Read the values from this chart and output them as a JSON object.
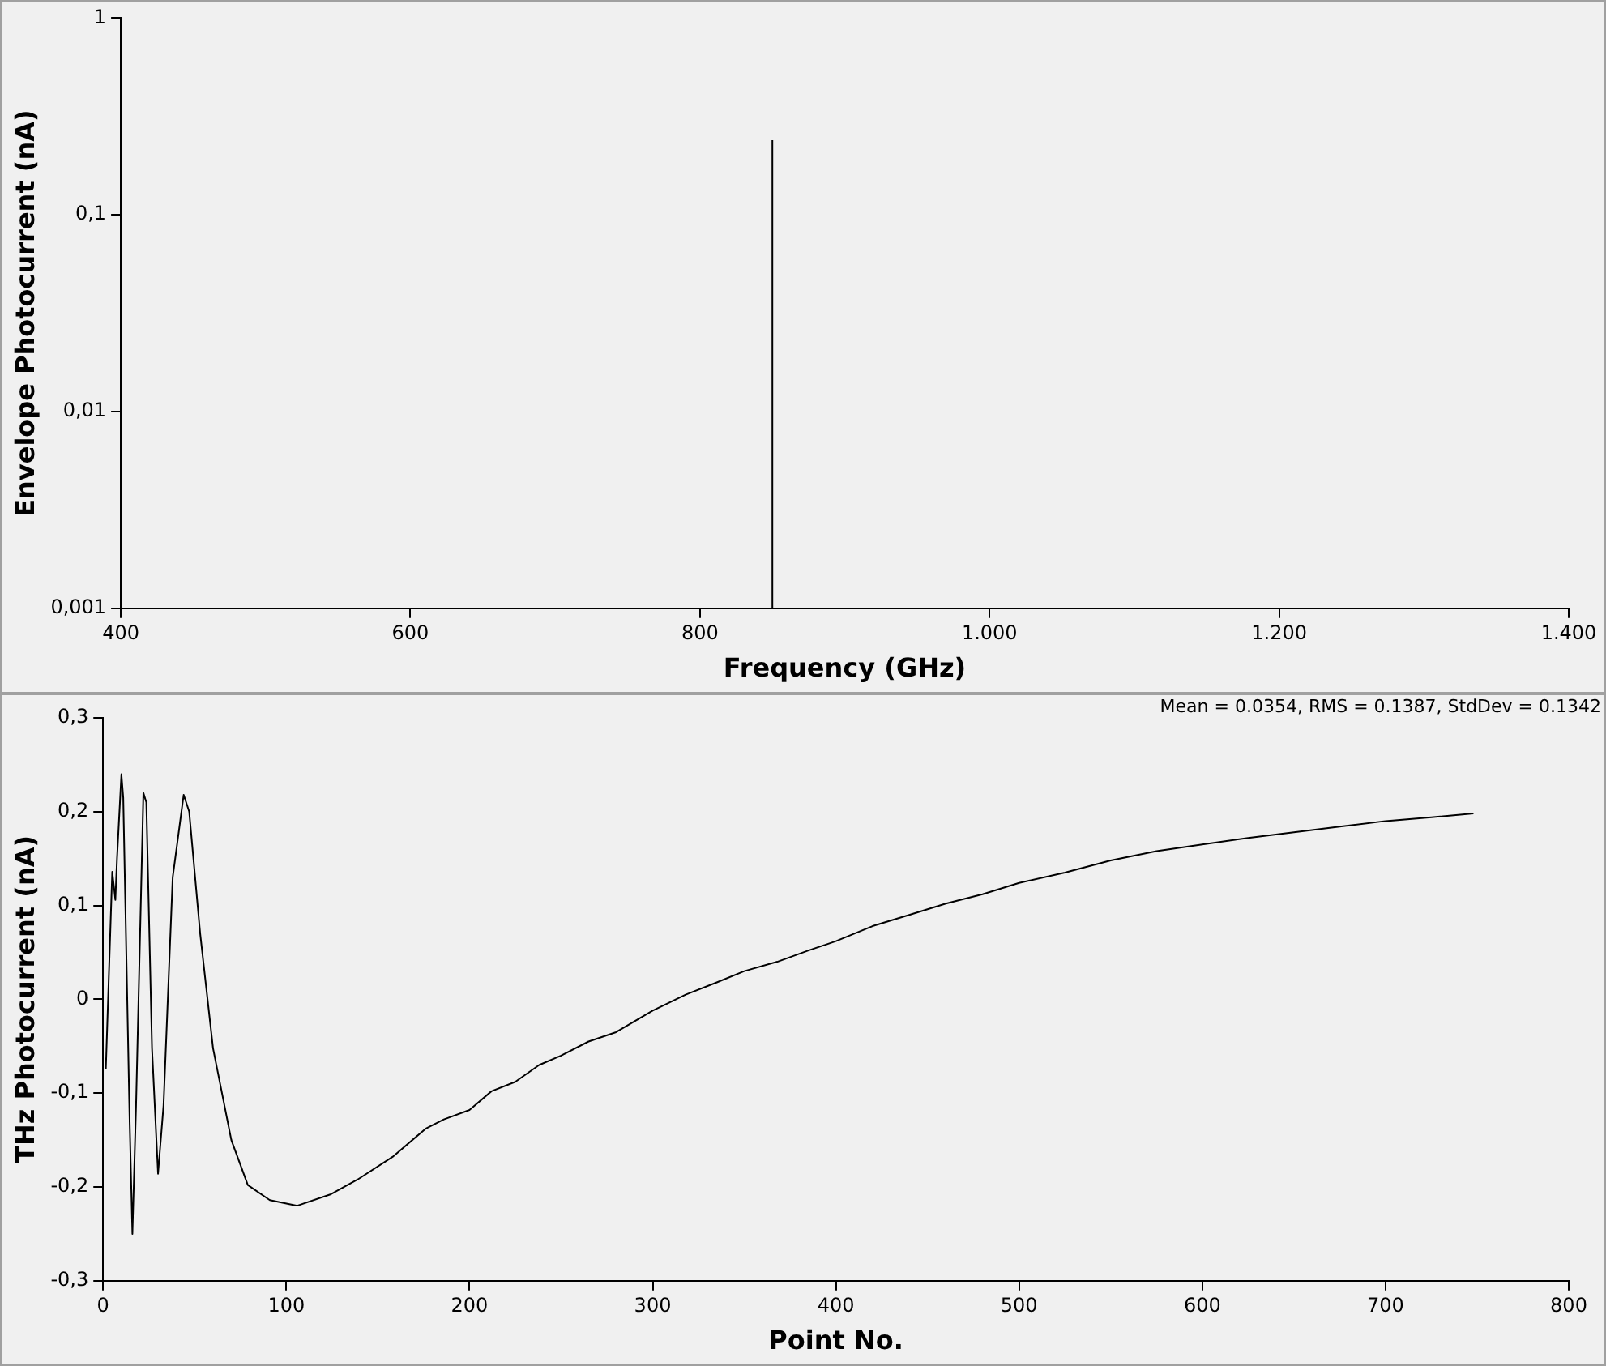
{
  "chart_data": [
    {
      "type": "line",
      "xlabel": "Frequency (GHz)",
      "ylabel": "Envelope Photocurrent (nA)",
      "log": "y",
      "grid": false,
      "legend": false,
      "marker": "none",
      "line_style": "solid",
      "xlim": [
        400,
        1400
      ],
      "xticks": [
        400,
        600,
        800,
        {
          "value": 1000,
          "label": "1.000"
        },
        {
          "value": 1200,
          "label": "1.200"
        },
        {
          "value": 1400,
          "label": "1.400"
        }
      ],
      "ylim": [
        0.001,
        1
      ],
      "yticks": [
        {
          "value": 0.001,
          "label": "0,001"
        },
        {
          "value": 0.01,
          "label": "0,01"
        },
        {
          "value": 0.1,
          "label": "0,1"
        },
        1
      ],
      "series": [
        {
          "color": "#000000",
          "x": [
            850,
            850
          ],
          "values": [
            0.001,
            0.24
          ]
        }
      ]
    },
    {
      "type": "line",
      "xlabel": "Point No.",
      "ylabel": "THz Photocurrent (nA)",
      "grid": false,
      "legend": false,
      "marker": "none",
      "line_style": "solid",
      "annotations": [
        "Mean = 0.0354, RMS = 0.1387, StdDev = 0.1342"
      ],
      "xlim": [
        0,
        800
      ],
      "xticks": [
        0,
        100,
        200,
        300,
        400,
        500,
        600,
        700,
        800
      ],
      "ylim": [
        -0.3,
        0.3
      ],
      "yticks": [
        {
          "value": -0.3,
          "label": "-0,3"
        },
        {
          "value": -0.2,
          "label": "-0,2"
        },
        {
          "value": -0.1,
          "label": "-0,1"
        },
        0,
        {
          "value": 0.1,
          "label": "0,1"
        },
        {
          "value": 0.2,
          "label": "0,2"
        },
        {
          "value": 0.3,
          "label": "0,3"
        }
      ],
      "series": [
        {
          "color": "#000000",
          "x": [
            1.5,
            5,
            6.7,
            7.6,
            10,
            11,
            14.5,
            16,
            18,
            22,
            23.6,
            26.7,
            30,
            33,
            38,
            44,
            47,
            53,
            60,
            70,
            79,
            91,
            106,
            124,
            139,
            158,
            176,
            186,
            200,
            212,
            225,
            238,
            250,
            265,
            280,
            300,
            318,
            335,
            350,
            368,
            385,
            400,
            420,
            440,
            460,
            480,
            500,
            525,
            550,
            575,
            600,
            625,
            650,
            675,
            700,
            725,
            748
          ],
          "values": [
            -0.074,
            0.136,
            0.106,
            0.15,
            0.24,
            0.215,
            -0.13,
            -0.25,
            -0.113,
            0.22,
            0.21,
            -0.052,
            -0.186,
            -0.113,
            0.13,
            0.218,
            0.2,
            0.07,
            -0.052,
            -0.15,
            -0.198,
            -0.214,
            -0.22,
            -0.208,
            -0.192,
            -0.168,
            -0.138,
            -0.128,
            -0.118,
            -0.098,
            -0.088,
            -0.07,
            -0.06,
            -0.045,
            -0.035,
            -0.012,
            0.005,
            0.018,
            0.03,
            0.04,
            0.052,
            0.062,
            0.078,
            0.09,
            0.102,
            0.112,
            0.124,
            0.135,
            0.148,
            0.158,
            0.165,
            0.172,
            0.178,
            0.184,
            0.19,
            0.194,
            0.198
          ]
        }
      ]
    }
  ]
}
